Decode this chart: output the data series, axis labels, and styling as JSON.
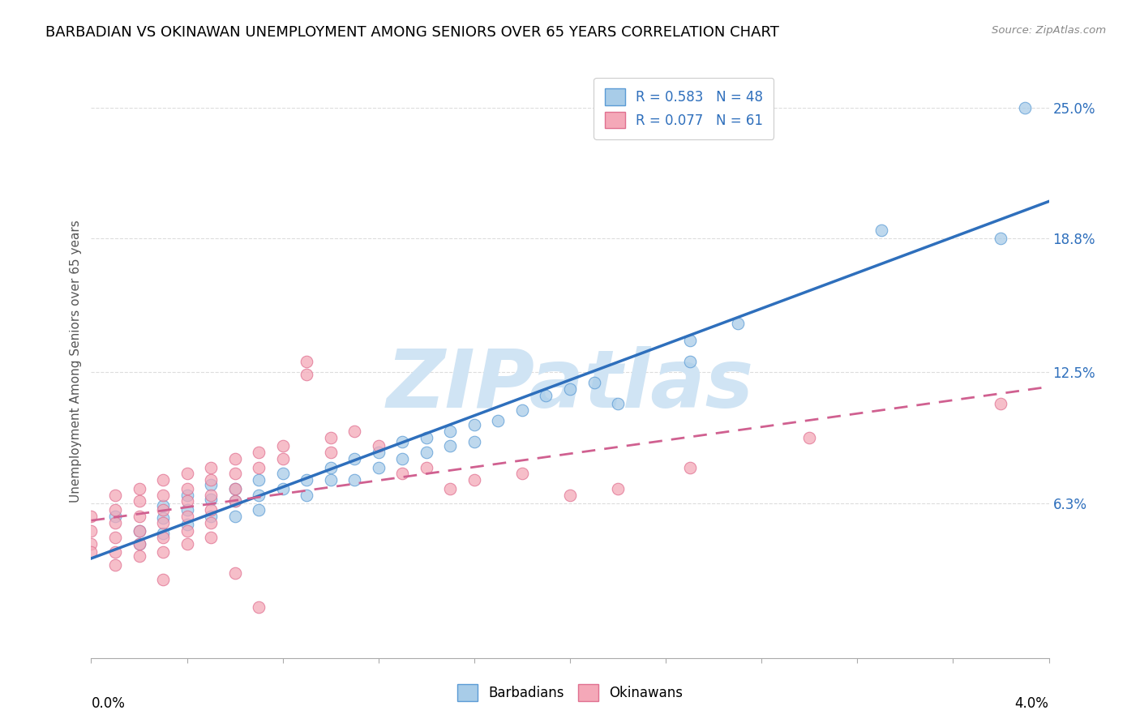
{
  "title": "BARBADIAN VS OKINAWAN UNEMPLOYMENT AMONG SENIORS OVER 65 YEARS CORRELATION CHART",
  "source": "Source: ZipAtlas.com",
  "ylabel": "Unemployment Among Seniors over 65 years",
  "xlim": [
    0.0,
    0.04
  ],
  "ylim": [
    -0.01,
    0.27
  ],
  "blue_R": 0.583,
  "blue_N": 48,
  "pink_R": 0.077,
  "pink_N": 61,
  "blue_color": "#a8cce8",
  "pink_color": "#f4a8b8",
  "blue_edge": "#5b9bd5",
  "pink_edge": "#e07090",
  "blue_scatter": [
    [
      0.001,
      0.057
    ],
    [
      0.002,
      0.05
    ],
    [
      0.002,
      0.044
    ],
    [
      0.003,
      0.062
    ],
    [
      0.003,
      0.056
    ],
    [
      0.003,
      0.049
    ],
    [
      0.004,
      0.067
    ],
    [
      0.004,
      0.06
    ],
    [
      0.004,
      0.053
    ],
    [
      0.005,
      0.072
    ],
    [
      0.005,
      0.065
    ],
    [
      0.005,
      0.057
    ],
    [
      0.006,
      0.07
    ],
    [
      0.006,
      0.064
    ],
    [
      0.006,
      0.057
    ],
    [
      0.007,
      0.074
    ],
    [
      0.007,
      0.067
    ],
    [
      0.007,
      0.06
    ],
    [
      0.008,
      0.077
    ],
    [
      0.008,
      0.07
    ],
    [
      0.009,
      0.074
    ],
    [
      0.009,
      0.067
    ],
    [
      0.01,
      0.08
    ],
    [
      0.01,
      0.074
    ],
    [
      0.011,
      0.084
    ],
    [
      0.011,
      0.074
    ],
    [
      0.012,
      0.087
    ],
    [
      0.012,
      0.08
    ],
    [
      0.013,
      0.092
    ],
    [
      0.013,
      0.084
    ],
    [
      0.014,
      0.094
    ],
    [
      0.014,
      0.087
    ],
    [
      0.015,
      0.097
    ],
    [
      0.015,
      0.09
    ],
    [
      0.016,
      0.1
    ],
    [
      0.016,
      0.092
    ],
    [
      0.017,
      0.102
    ],
    [
      0.018,
      0.107
    ],
    [
      0.019,
      0.114
    ],
    [
      0.02,
      0.117
    ],
    [
      0.021,
      0.12
    ],
    [
      0.022,
      0.11
    ],
    [
      0.025,
      0.13
    ],
    [
      0.025,
      0.14
    ],
    [
      0.027,
      0.148
    ],
    [
      0.033,
      0.192
    ],
    [
      0.038,
      0.188
    ],
    [
      0.039,
      0.25
    ]
  ],
  "pink_scatter": [
    [
      0.0,
      0.057
    ],
    [
      0.0,
      0.05
    ],
    [
      0.0,
      0.044
    ],
    [
      0.0,
      0.04
    ],
    [
      0.001,
      0.067
    ],
    [
      0.001,
      0.06
    ],
    [
      0.001,
      0.054
    ],
    [
      0.001,
      0.047
    ],
    [
      0.001,
      0.04
    ],
    [
      0.001,
      0.034
    ],
    [
      0.002,
      0.07
    ],
    [
      0.002,
      0.064
    ],
    [
      0.002,
      0.057
    ],
    [
      0.002,
      0.05
    ],
    [
      0.002,
      0.044
    ],
    [
      0.002,
      0.038
    ],
    [
      0.003,
      0.074
    ],
    [
      0.003,
      0.067
    ],
    [
      0.003,
      0.06
    ],
    [
      0.003,
      0.054
    ],
    [
      0.003,
      0.047
    ],
    [
      0.003,
      0.04
    ],
    [
      0.003,
      0.027
    ],
    [
      0.004,
      0.077
    ],
    [
      0.004,
      0.07
    ],
    [
      0.004,
      0.064
    ],
    [
      0.004,
      0.057
    ],
    [
      0.004,
      0.05
    ],
    [
      0.004,
      0.044
    ],
    [
      0.005,
      0.08
    ],
    [
      0.005,
      0.074
    ],
    [
      0.005,
      0.067
    ],
    [
      0.005,
      0.06
    ],
    [
      0.005,
      0.054
    ],
    [
      0.005,
      0.047
    ],
    [
      0.006,
      0.084
    ],
    [
      0.006,
      0.077
    ],
    [
      0.006,
      0.07
    ],
    [
      0.006,
      0.064
    ],
    [
      0.006,
      0.03
    ],
    [
      0.007,
      0.087
    ],
    [
      0.007,
      0.08
    ],
    [
      0.007,
      0.014
    ],
    [
      0.008,
      0.09
    ],
    [
      0.008,
      0.084
    ],
    [
      0.009,
      0.13
    ],
    [
      0.009,
      0.124
    ],
    [
      0.01,
      0.094
    ],
    [
      0.01,
      0.087
    ],
    [
      0.011,
      0.097
    ],
    [
      0.012,
      0.09
    ],
    [
      0.013,
      0.077
    ],
    [
      0.014,
      0.08
    ],
    [
      0.015,
      0.07
    ],
    [
      0.016,
      0.074
    ],
    [
      0.018,
      0.077
    ],
    [
      0.02,
      0.067
    ],
    [
      0.022,
      0.07
    ],
    [
      0.025,
      0.08
    ],
    [
      0.03,
      0.094
    ],
    [
      0.038,
      0.11
    ]
  ],
  "blue_line_color": "#2e6fbc",
  "pink_line_color": "#d06090",
  "ytick_vals": [
    0.063,
    0.125,
    0.188,
    0.25
  ],
  "ytick_labels": [
    "6.3%",
    "12.5%",
    "18.8%",
    "25.0%"
  ],
  "xtick_vals": [
    0.0,
    0.004,
    0.008,
    0.012,
    0.016,
    0.02,
    0.024,
    0.028,
    0.032,
    0.036,
    0.04
  ],
  "watermark": "ZIPatlas",
  "watermark_color": "#d0e4f4",
  "legend_text_color": "#2e6fbc",
  "background_color": "#ffffff",
  "grid_color": "#dddddd"
}
